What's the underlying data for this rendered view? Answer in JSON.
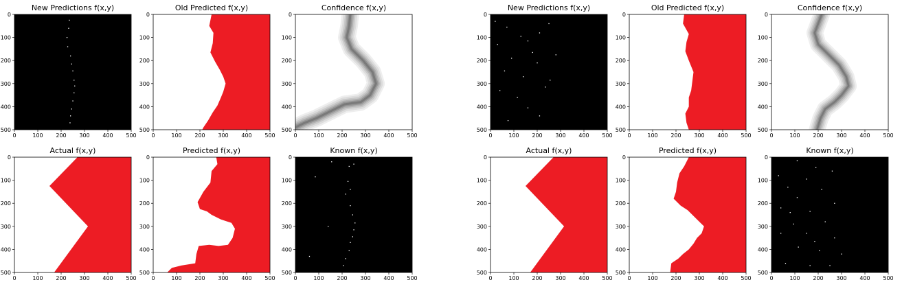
{
  "colors": {
    "region": "#ed1c24",
    "background_known": "#000000",
    "blank": "#ffffff",
    "confidence_bands": [
      "#eeeeee",
      "#dddddd",
      "#c8c8c8",
      "#b0b0b0",
      "#959595",
      "#7a7a7a"
    ]
  },
  "chart_data": [
    {
      "type": "heatmap",
      "title": "New Predictions f(x,y)",
      "xlim": [
        0,
        500
      ],
      "ylim": [
        500,
        0
      ],
      "xticks": [
        "0",
        "100",
        "200",
        "300",
        "400",
        "500"
      ],
      "yticks": [
        "0",
        "100",
        "200",
        "300",
        "400",
        "500"
      ],
      "background": "black",
      "points": [
        [
          235,
          25
        ],
        [
          232,
          60
        ],
        [
          225,
          100
        ],
        [
          228,
          140
        ],
        [
          240,
          180
        ],
        [
          245,
          215
        ],
        [
          250,
          245
        ],
        [
          255,
          285
        ],
        [
          258,
          310
        ],
        [
          255,
          340
        ],
        [
          250,
          375
        ],
        [
          245,
          410
        ],
        [
          240,
          440
        ],
        [
          238,
          470
        ]
      ]
    },
    {
      "type": "heatmap",
      "title": "Old Predicted f(x,y)",
      "xlim": [
        0,
        500
      ],
      "ylim": [
        500,
        0
      ],
      "xticks": [
        "0",
        "100",
        "200",
        "300",
        "400",
        "500"
      ],
      "yticks": [
        "0",
        "100",
        "200",
        "300",
        "400",
        "500"
      ],
      "background": "white",
      "region_side": "right",
      "boundary": [
        [
          250,
          0
        ],
        [
          240,
          50
        ],
        [
          258,
          80
        ],
        [
          255,
          125
        ],
        [
          245,
          165
        ],
        [
          265,
          205
        ],
        [
          285,
          240
        ],
        [
          300,
          270
        ],
        [
          310,
          300
        ],
        [
          300,
          335
        ],
        [
          290,
          360
        ],
        [
          275,
          395
        ],
        [
          255,
          425
        ],
        [
          235,
          460
        ],
        [
          215,
          490
        ],
        [
          210,
          500
        ]
      ]
    },
    {
      "type": "heatmap",
      "title": "Confidence f(x,y)",
      "xlim": [
        0,
        500
      ],
      "ylim": [
        500,
        0
      ],
      "xticks": [
        "0",
        "100",
        "200",
        "300",
        "400",
        "500"
      ],
      "yticks": [
        "0",
        "100",
        "200",
        "300",
        "400",
        "500"
      ],
      "background": "white",
      "ridge": [
        [
          235,
          0
        ],
        [
          230,
          50
        ],
        [
          220,
          100
        ],
        [
          240,
          150
        ],
        [
          290,
          200
        ],
        [
          330,
          250
        ],
        [
          345,
          300
        ],
        [
          320,
          350
        ],
        [
          280,
          380
        ],
        [
          210,
          390
        ],
        [
          150,
          420
        ],
        [
          90,
          450
        ],
        [
          40,
          470
        ],
        [
          0,
          490
        ]
      ],
      "band_widths": [
        75,
        60,
        45,
        32,
        20,
        9
      ]
    },
    {
      "type": "heatmap",
      "title": "New Predictions f(x,y)",
      "xlim": [
        0,
        500
      ],
      "ylim": [
        500,
        0
      ],
      "xticks": [
        "0",
        "100",
        "200",
        "300",
        "400",
        "500"
      ],
      "yticks": [
        "0",
        "100",
        "200",
        "300",
        "400",
        "500"
      ],
      "background": "black",
      "points": [
        [
          20,
          30
        ],
        [
          70,
          55
        ],
        [
          250,
          40
        ],
        [
          130,
          95
        ],
        [
          210,
          80
        ],
        [
          30,
          130
        ],
        [
          160,
          115
        ],
        [
          90,
          190
        ],
        [
          200,
          210
        ],
        [
          280,
          175
        ],
        [
          60,
          245
        ],
        [
          140,
          270
        ],
        [
          40,
          330
        ],
        [
          115,
          360
        ],
        [
          235,
          315
        ],
        [
          160,
          405
        ],
        [
          210,
          440
        ],
        [
          75,
          460
        ],
        [
          180,
          165
        ],
        [
          255,
          285
        ]
      ]
    },
    {
      "type": "heatmap",
      "title": "Old Predicted f(x,y)",
      "xlim": [
        0,
        500
      ],
      "ylim": [
        500,
        0
      ],
      "xticks": [
        "0",
        "100",
        "200",
        "300",
        "400",
        "500"
      ],
      "yticks": [
        "0",
        "100",
        "200",
        "300",
        "400",
        "500"
      ],
      "background": "white",
      "region_side": "right",
      "boundary": [
        [
          235,
          0
        ],
        [
          230,
          40
        ],
        [
          255,
          85
        ],
        [
          245,
          120
        ],
        [
          240,
          160
        ],
        [
          255,
          200
        ],
        [
          265,
          225
        ],
        [
          275,
          250
        ],
        [
          270,
          290
        ],
        [
          265,
          330
        ],
        [
          255,
          360
        ],
        [
          255,
          400
        ],
        [
          240,
          430
        ],
        [
          245,
          470
        ],
        [
          255,
          500
        ]
      ]
    },
    {
      "type": "heatmap",
      "title": "Confidence f(x,y)",
      "xlim": [
        0,
        500
      ],
      "ylim": [
        500,
        0
      ],
      "xticks": [
        "0",
        "100",
        "200",
        "300",
        "400",
        "500"
      ],
      "yticks": [
        "0",
        "100",
        "200",
        "300",
        "400",
        "500"
      ],
      "background": "white",
      "ridge": [
        [
          215,
          0
        ],
        [
          200,
          40
        ],
        [
          185,
          80
        ],
        [
          200,
          130
        ],
        [
          240,
          170
        ],
        [
          290,
          220
        ],
        [
          320,
          270
        ],
        [
          330,
          310
        ],
        [
          300,
          350
        ],
        [
          270,
          380
        ],
        [
          230,
          410
        ],
        [
          210,
          450
        ],
        [
          195,
          500
        ]
      ],
      "band_widths": [
        70,
        55,
        42,
        30,
        18,
        8
      ]
    },
    {
      "type": "heatmap",
      "title": "Actual f(x,y)",
      "xlim": [
        0,
        500
      ],
      "ylim": [
        500,
        0
      ],
      "xticks": [
        "0",
        "100",
        "200",
        "300",
        "400",
        "500"
      ],
      "yticks": [
        "0",
        "100",
        "200",
        "300",
        "400",
        "500"
      ],
      "background": "white",
      "region_side": "right",
      "boundary": [
        [
          270,
          0
        ],
        [
          150,
          125
        ],
        [
          315,
          300
        ],
        [
          170,
          500
        ]
      ]
    },
    {
      "type": "heatmap",
      "title": "Predicted f(x,y)",
      "xlim": [
        0,
        500
      ],
      "ylim": [
        500,
        0
      ],
      "xticks": [
        "0",
        "100",
        "200",
        "300",
        "400",
        "500"
      ],
      "yticks": [
        "0",
        "100",
        "200",
        "300",
        "400",
        "500"
      ],
      "background": "white",
      "region_side": "right",
      "boundary": [
        [
          270,
          0
        ],
        [
          275,
          30
        ],
        [
          250,
          60
        ],
        [
          245,
          110
        ],
        [
          215,
          150
        ],
        [
          190,
          195
        ],
        [
          200,
          225
        ],
        [
          230,
          235
        ],
        [
          250,
          250
        ],
        [
          290,
          270
        ],
        [
          335,
          285
        ],
        [
          350,
          310
        ],
        [
          340,
          350
        ],
        [
          320,
          380
        ],
        [
          280,
          385
        ],
        [
          240,
          380
        ],
        [
          195,
          385
        ],
        [
          185,
          420
        ],
        [
          180,
          460
        ],
        [
          120,
          470
        ],
        [
          80,
          480
        ],
        [
          60,
          500
        ]
      ]
    },
    {
      "type": "heatmap",
      "title": "Known f(x,y)",
      "xlim": [
        0,
        500
      ],
      "ylim": [
        500,
        0
      ],
      "xticks": [
        "0",
        "100",
        "200",
        "300",
        "400",
        "500"
      ],
      "yticks": [
        "0",
        "100",
        "200",
        "300",
        "400",
        "500"
      ],
      "background": "black",
      "points": [
        [
          155,
          20
        ],
        [
          230,
          40
        ],
        [
          85,
          85
        ],
        [
          225,
          105
        ],
        [
          215,
          160
        ],
        [
          235,
          210
        ],
        [
          245,
          250
        ],
        [
          255,
          285
        ],
        [
          250,
          315
        ],
        [
          245,
          345
        ],
        [
          235,
          370
        ],
        [
          230,
          405
        ],
        [
          215,
          440
        ],
        [
          205,
          470
        ],
        [
          60,
          430
        ],
        [
          140,
          300
        ],
        [
          235,
          140
        ],
        [
          250,
          30
        ]
      ]
    },
    {
      "type": "heatmap",
      "title": "Actual f(x,y)",
      "xlim": [
        0,
        500
      ],
      "ylim": [
        500,
        0
      ],
      "xticks": [
        "0",
        "100",
        "200",
        "300",
        "400",
        "500"
      ],
      "yticks": [
        "0",
        "100",
        "200",
        "300",
        "400",
        "500"
      ],
      "background": "white",
      "region_side": "right",
      "boundary": [
        [
          270,
          0
        ],
        [
          150,
          125
        ],
        [
          315,
          300
        ],
        [
          170,
          500
        ]
      ]
    },
    {
      "type": "heatmap",
      "title": "Predicted f(x,y)",
      "xlim": [
        0,
        500
      ],
      "ylim": [
        500,
        0
      ],
      "xticks": [
        "0",
        "100",
        "200",
        "300",
        "400",
        "500"
      ],
      "yticks": [
        "0",
        "100",
        "200",
        "300",
        "400",
        "500"
      ],
      "background": "white",
      "region_side": "right",
      "boundary": [
        [
          255,
          0
        ],
        [
          235,
          40
        ],
        [
          215,
          70
        ],
        [
          205,
          110
        ],
        [
          200,
          150
        ],
        [
          190,
          180
        ],
        [
          220,
          210
        ],
        [
          250,
          230
        ],
        [
          280,
          260
        ],
        [
          300,
          280
        ],
        [
          320,
          300
        ],
        [
          310,
          330
        ],
        [
          290,
          350
        ],
        [
          275,
          375
        ],
        [
          255,
          400
        ],
        [
          230,
          420
        ],
        [
          210,
          440
        ],
        [
          180,
          460
        ],
        [
          175,
          500
        ]
      ]
    },
    {
      "type": "heatmap",
      "title": "Known f(x,y)",
      "xlim": [
        0,
        500
      ],
      "ylim": [
        500,
        0
      ],
      "xticks": [
        "0",
        "100",
        "200",
        "300",
        "400",
        "500"
      ],
      "yticks": [
        "0",
        "100",
        "200",
        "300",
        "400",
        "500"
      ],
      "background": "black",
      "points": [
        [
          110,
          15
        ],
        [
          190,
          45
        ],
        [
          30,
          80
        ],
        [
          150,
          95
        ],
        [
          260,
          60
        ],
        [
          70,
          130
        ],
        [
          215,
          140
        ],
        [
          110,
          175
        ],
        [
          40,
          220
        ],
        [
          270,
          200
        ],
        [
          165,
          235
        ],
        [
          95,
          290
        ],
        [
          230,
          280
        ],
        [
          40,
          330
        ],
        [
          150,
          330
        ],
        [
          270,
          350
        ],
        [
          115,
          390
        ],
        [
          205,
          405
        ],
        [
          60,
          460
        ],
        [
          165,
          470
        ],
        [
          250,
          470
        ],
        [
          300,
          420
        ],
        [
          80,
          240
        ],
        [
          185,
          365
        ]
      ]
    }
  ]
}
